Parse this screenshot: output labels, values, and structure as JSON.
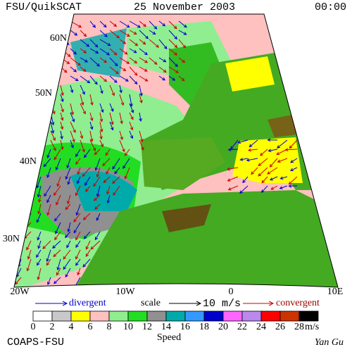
{
  "header": {
    "source": "FSU/QuikSCAT",
    "date": "25 November 2003",
    "time": "00:00"
  },
  "map": {
    "lat_labels": [
      "60N",
      "50N",
      "40N",
      "30N"
    ],
    "lon_labels": [
      "20W",
      "10W",
      "0",
      "10E"
    ]
  },
  "legend": {
    "divergent": "divergent",
    "scale": "scale",
    "scale_value": "10 m/s",
    "convergent": "convergent"
  },
  "colorbar": {
    "title": "Speed",
    "unit": "m/s",
    "ticks": [
      0,
      2,
      4,
      6,
      8,
      10,
      12,
      14,
      16,
      18,
      20,
      22,
      24,
      26,
      28
    ],
    "colors": [
      "#ffffff",
      "#c8c8c8",
      "#ffff00",
      "#ffc0c0",
      "#90ee90",
      "#22dd22",
      "#909090",
      "#00aaaa",
      "#3399ff",
      "#0000cc",
      "#ff66ff",
      "#bb88ee",
      "#ff0000",
      "#cc3300",
      "#000000"
    ]
  },
  "footer": {
    "left": "COAPS-FSU",
    "right": "Yan Gu"
  }
}
